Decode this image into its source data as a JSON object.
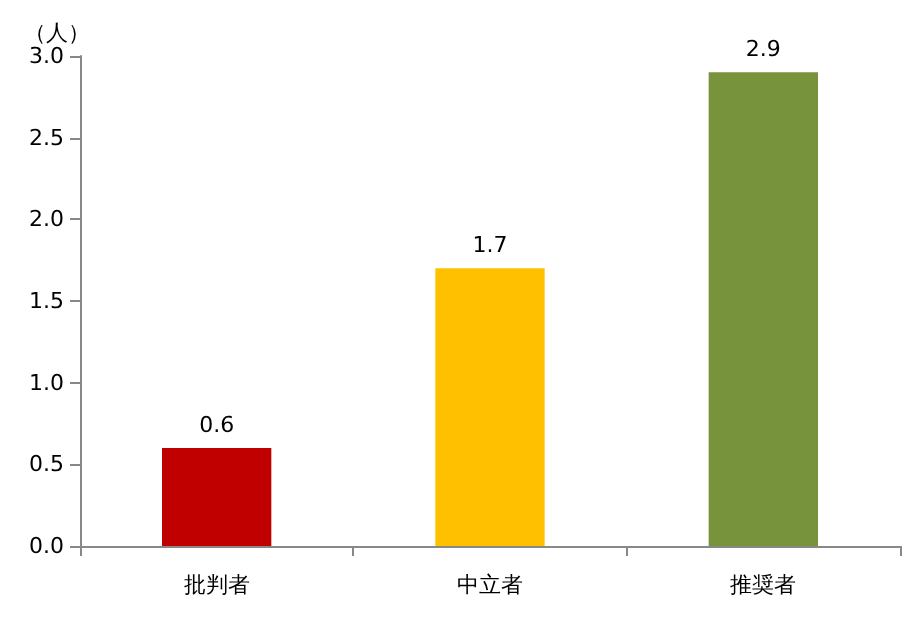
{
  "chart_data": {
    "type": "bar",
    "ylabel": "（人）",
    "categories": [
      "批判者",
      "中立者",
      "推奨者"
    ],
    "values": [
      0.6,
      1.7,
      2.9
    ],
    "colors": [
      "#c00000",
      "#ffc000",
      "#77933c"
    ],
    "ylim": [
      0,
      3
    ],
    "yticks": [
      {
        "value": 0,
        "label": "0.0"
      },
      {
        "value": 0.5,
        "label": "0.5"
      },
      {
        "value": 1,
        "label": "1.0"
      },
      {
        "value": 1.5,
        "label": "1.5"
      },
      {
        "value": 2,
        "label": "2.0"
      },
      {
        "value": 2.5,
        "label": "2.5"
      },
      {
        "value": 3,
        "label": "3.0"
      }
    ],
    "grid": false,
    "data_labels": true
  }
}
